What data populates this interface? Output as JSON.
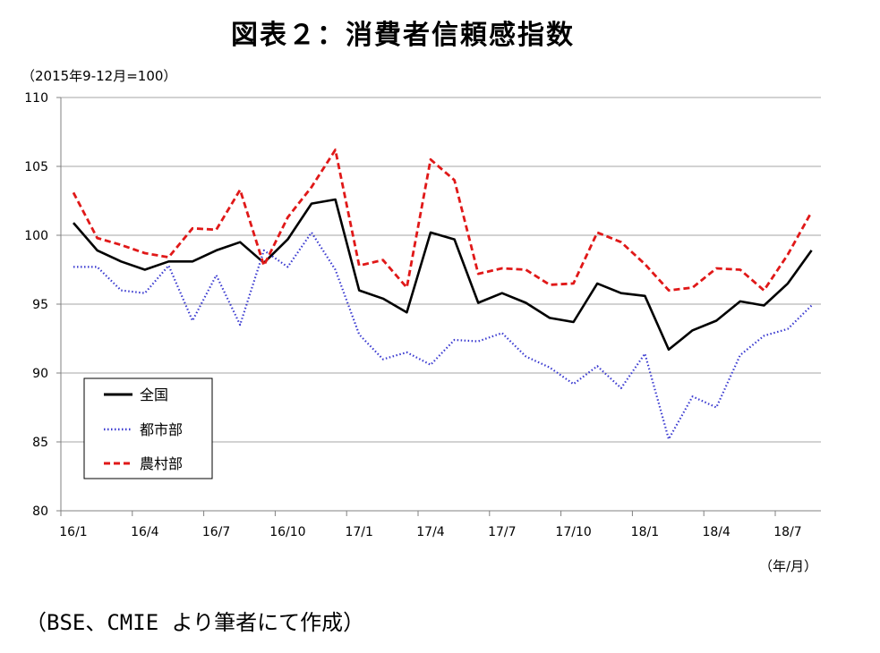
{
  "chart_data": {
    "type": "line",
    "title": "図表２：消費者信頼感指数",
    "y_unit_label": "（2015年9-12月=100）",
    "x_unit_label": "（年/月）",
    "ylim": [
      80,
      110
    ],
    "yticks": [
      80,
      85,
      90,
      95,
      100,
      105,
      110
    ],
    "grid": true,
    "legend_position": "lower-left",
    "x_tick_labels": [
      "16/1",
      "16/4",
      "16/7",
      "16/10",
      "17/1",
      "17/4",
      "17/7",
      "17/10",
      "18/1",
      "18/4",
      "18/7"
    ],
    "x": [
      "16/1",
      "16/2",
      "16/3",
      "16/4",
      "16/5",
      "16/6",
      "16/7",
      "16/8",
      "16/9",
      "16/10",
      "16/11",
      "16/12",
      "17/1",
      "17/2",
      "17/3",
      "17/4",
      "17/5",
      "17/6",
      "17/7",
      "17/8",
      "17/9",
      "17/10",
      "17/11",
      "17/12",
      "18/1",
      "18/2",
      "18/3",
      "18/4",
      "18/5",
      "18/6",
      "18/7",
      "18/8"
    ],
    "series": [
      {
        "name": "全国",
        "color": "#000000",
        "style": "solid",
        "values": [
          100.9,
          98.9,
          98.1,
          97.5,
          98.1,
          98.1,
          98.9,
          99.5,
          98.0,
          99.7,
          102.3,
          102.6,
          96.0,
          95.4,
          94.4,
          100.2,
          99.7,
          95.1,
          95.8,
          95.1,
          94.0,
          93.7,
          96.5,
          95.8,
          95.6,
          91.7,
          93.1,
          93.8,
          95.2,
          94.9,
          96.5,
          98.9
        ]
      },
      {
        "name": "都市部",
        "color": "#3a3ad0",
        "style": "dotted",
        "values": [
          97.7,
          97.7,
          96.0,
          95.8,
          97.8,
          93.8,
          97.1,
          93.5,
          98.9,
          97.7,
          100.2,
          97.5,
          92.8,
          91.0,
          91.5,
          90.6,
          92.4,
          92.3,
          92.9,
          91.2,
          90.4,
          89.2,
          90.5,
          88.9,
          91.4,
          85.2,
          88.3,
          87.5,
          91.3,
          92.7,
          93.2,
          94.9
        ]
      },
      {
        "name": "農村部",
        "color": "#e01818",
        "style": "dashed",
        "values": [
          103.1,
          99.8,
          99.3,
          98.7,
          98.4,
          100.5,
          100.4,
          103.3,
          97.8,
          101.3,
          103.5,
          106.2,
          97.8,
          98.2,
          96.2,
          105.5,
          104.0,
          97.2,
          97.6,
          97.5,
          96.4,
          96.5,
          100.2,
          99.5,
          97.9,
          96.0,
          96.2,
          97.6,
          97.5,
          96.0,
          98.6,
          101.7
        ]
      }
    ]
  },
  "source_note": "（BSE、CMIE より筆者にて作成）"
}
